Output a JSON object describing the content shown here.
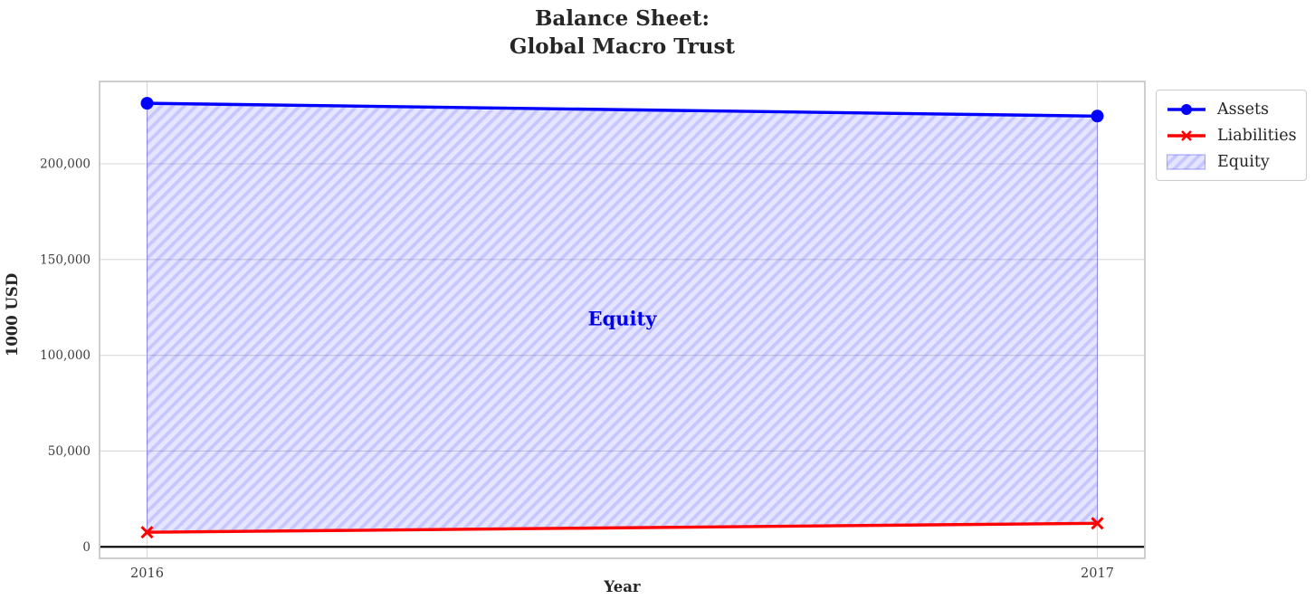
{
  "chart_data": {
    "type": "line",
    "title": "Balance Sheet:\nGlobal Macro Trust",
    "xlabel": "Year",
    "ylabel": "1000 USD",
    "x": [
      2016,
      2017
    ],
    "xtick_labels": [
      "2016",
      "2017"
    ],
    "ytick_values": [
      0,
      50000,
      100000,
      150000,
      200000
    ],
    "ytick_labels": [
      "0",
      "50,000",
      "100,000",
      "150,000",
      "200,000"
    ],
    "ylim": [
      -6000,
      243000
    ],
    "xlim_pad_frac": 0.05,
    "grid": true,
    "legend_position": "outside-top-right",
    "series": [
      {
        "name": "Assets",
        "values": [
          231600,
          224900
        ],
        "color": "#0000ff",
        "marker": "circle"
      },
      {
        "name": "Liabilities",
        "values": [
          7600,
          12300
        ],
        "color": "#ff0000",
        "marker": "x"
      }
    ],
    "fill_between": {
      "name": "Equity",
      "upper": "Assets",
      "lower": "Liabilities",
      "color": "#0000ff",
      "face_alpha": 0.1,
      "hatch_alpha": 0.13,
      "edge_alpha": 0.3,
      "hatch": "/"
    },
    "annotation": {
      "text": "Equity",
      "x": 2016.5,
      "y": 119000,
      "color": "#0000ee"
    },
    "zero_line": {
      "show": true,
      "color": "#000000"
    },
    "style": {
      "grid_color": "#d8d8d8",
      "frame_color": "#c8c8c8",
      "tick_label_color": "#3d3d3d",
      "text_color": "#262626"
    }
  }
}
